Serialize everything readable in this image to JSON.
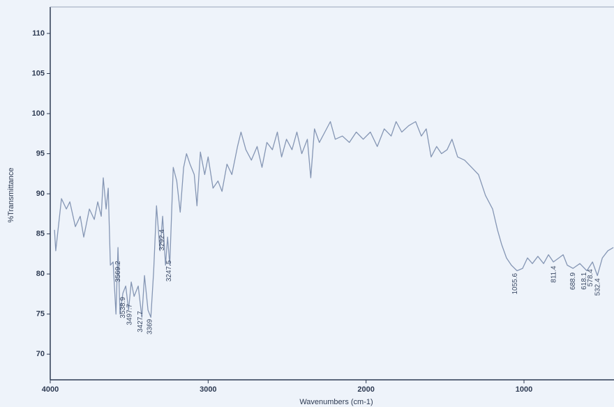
{
  "chart_data": {
    "type": "line",
    "xlabel": "Wavenumbers (cm-1)",
    "ylabel": "%Transmittance",
    "xlim": [
      4000,
      430
    ],
    "ylim": [
      66.8,
      113.3
    ],
    "xticks": [
      4000,
      3000,
      2000,
      1000
    ],
    "yticks": [
      70,
      75,
      80,
      85,
      90,
      95,
      100,
      105,
      110
    ],
    "grid": false,
    "series": [
      {
        "color": "#8596b4",
        "x": [
          3973,
          3965,
          3929,
          3898,
          3876,
          3841,
          3810,
          3788,
          3752,
          3721,
          3699,
          3677,
          3664,
          3646,
          3633,
          3619,
          3602,
          3584,
          3571,
          3558,
          3540,
          3522,
          3504,
          3487,
          3469,
          3443,
          3420,
          3403,
          3381,
          3363,
          3345,
          3327,
          3305,
          3288,
          3270,
          3257,
          3243,
          3221,
          3199,
          3177,
          3155,
          3137,
          3115,
          3088,
          3071,
          3049,
          3022,
          3000,
          2969,
          2938,
          2912,
          2881,
          2850,
          2814,
          2792,
          2761,
          2726,
          2690,
          2659,
          2628,
          2593,
          2562,
          2535,
          2504,
          2469,
          2438,
          2407,
          2372,
          2350,
          2327,
          2296,
          2261,
          2226,
          2195,
          2150,
          2106,
          2062,
          2018,
          1973,
          1929,
          1885,
          1841,
          1810,
          1774,
          1730,
          1686,
          1650,
          1619,
          1588,
          1553,
          1522,
          1487,
          1456,
          1420,
          1376,
          1332,
          1288,
          1244,
          1199,
          1168,
          1142,
          1111,
          1080,
          1044,
          1009,
          978,
          947,
          912,
          876,
          845,
          814,
          779,
          752,
          726,
          690,
          646,
          602,
          566,
          535,
          504,
          469,
          434
        ],
        "values": [
          85.5,
          82.9,
          89.4,
          88.1,
          89.0,
          85.9,
          87.2,
          84.6,
          88.1,
          86.8,
          89.0,
          87.2,
          92.0,
          88.1,
          90.7,
          81.1,
          81.5,
          75.0,
          83.3,
          75.0,
          77.6,
          78.5,
          75.5,
          79.0,
          77.2,
          78.5,
          74.6,
          79.8,
          75.5,
          74.6,
          80.3,
          88.5,
          82.9,
          87.2,
          81.1,
          84.6,
          81.1,
          93.3,
          91.6,
          87.7,
          93.3,
          95.0,
          93.7,
          92.4,
          88.5,
          95.2,
          92.4,
          94.6,
          90.7,
          91.6,
          90.3,
          93.7,
          92.4,
          95.9,
          97.7,
          95.5,
          94.2,
          95.9,
          93.3,
          96.4,
          95.5,
          97.7,
          94.6,
          96.8,
          95.5,
          97.7,
          95.0,
          96.8,
          92.0,
          98.1,
          96.4,
          97.7,
          99.0,
          96.8,
          97.2,
          96.4,
          97.7,
          96.8,
          97.7,
          95.9,
          98.1,
          97.2,
          99.0,
          97.7,
          98.5,
          99.0,
          97.2,
          98.1,
          94.6,
          95.9,
          95.0,
          95.5,
          96.8,
          94.6,
          94.2,
          93.3,
          92.4,
          89.8,
          88.1,
          85.5,
          83.7,
          82.0,
          81.1,
          80.4,
          80.7,
          82.0,
          81.3,
          82.2,
          81.3,
          82.4,
          81.5,
          82.0,
          82.4,
          81.1,
          80.7,
          81.3,
          80.4,
          81.5,
          79.8,
          82.0,
          82.9,
          83.3
        ]
      }
    ],
    "peaks": [
      3569.2,
      3538.9,
      3497.7,
      3427.7,
      3369.0,
      3292.4,
      3247.5,
      1055.6,
      811.4,
      688.9,
      618.1,
      578.4,
      532.4
    ]
  }
}
